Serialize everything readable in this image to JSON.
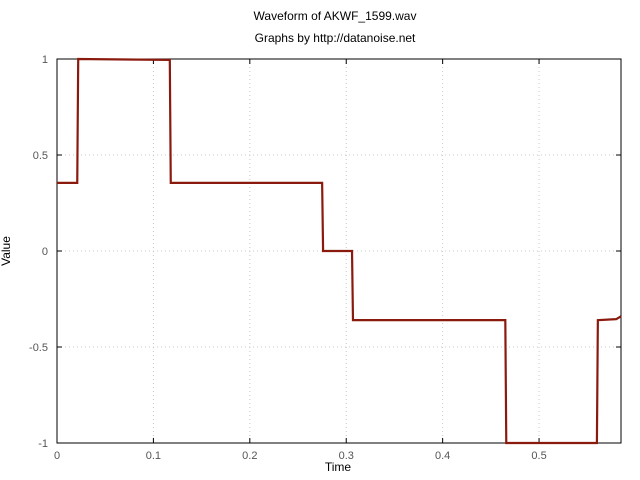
{
  "chart_data": {
    "type": "line",
    "title": "Waveform of AKWF_1599.wav",
    "subtitle": "Graphs by http://datanoise.net",
    "xlabel": "Time",
    "ylabel": "Value",
    "xlim": [
      0,
      0.585
    ],
    "ylim": [
      -1,
      1
    ],
    "xticks": [
      "0",
      "0.1",
      "0.2",
      "0.3",
      "0.4",
      "0.5"
    ],
    "xtick_values": [
      0,
      0.1,
      0.2,
      0.3,
      0.4,
      0.5
    ],
    "yticks": [
      "1",
      "0.5",
      "0",
      "-0.5",
      "-1"
    ],
    "ytick_values": [
      1,
      0.5,
      0,
      -0.5,
      -1
    ],
    "grid": true,
    "series": [
      {
        "color": "#8b1a0e",
        "x": [
          0,
          0.021,
          0.022,
          0.117,
          0.118,
          0.275,
          0.276,
          0.306,
          0.307,
          0.465,
          0.466,
          0.56,
          0.561,
          0.58,
          0.585
        ],
        "y": [
          0.355,
          0.355,
          1.0,
          0.995,
          0.355,
          0.355,
          0.0,
          0.0,
          -0.36,
          -0.36,
          -1.0,
          -1.0,
          -0.36,
          -0.355,
          -0.34
        ]
      }
    ]
  }
}
